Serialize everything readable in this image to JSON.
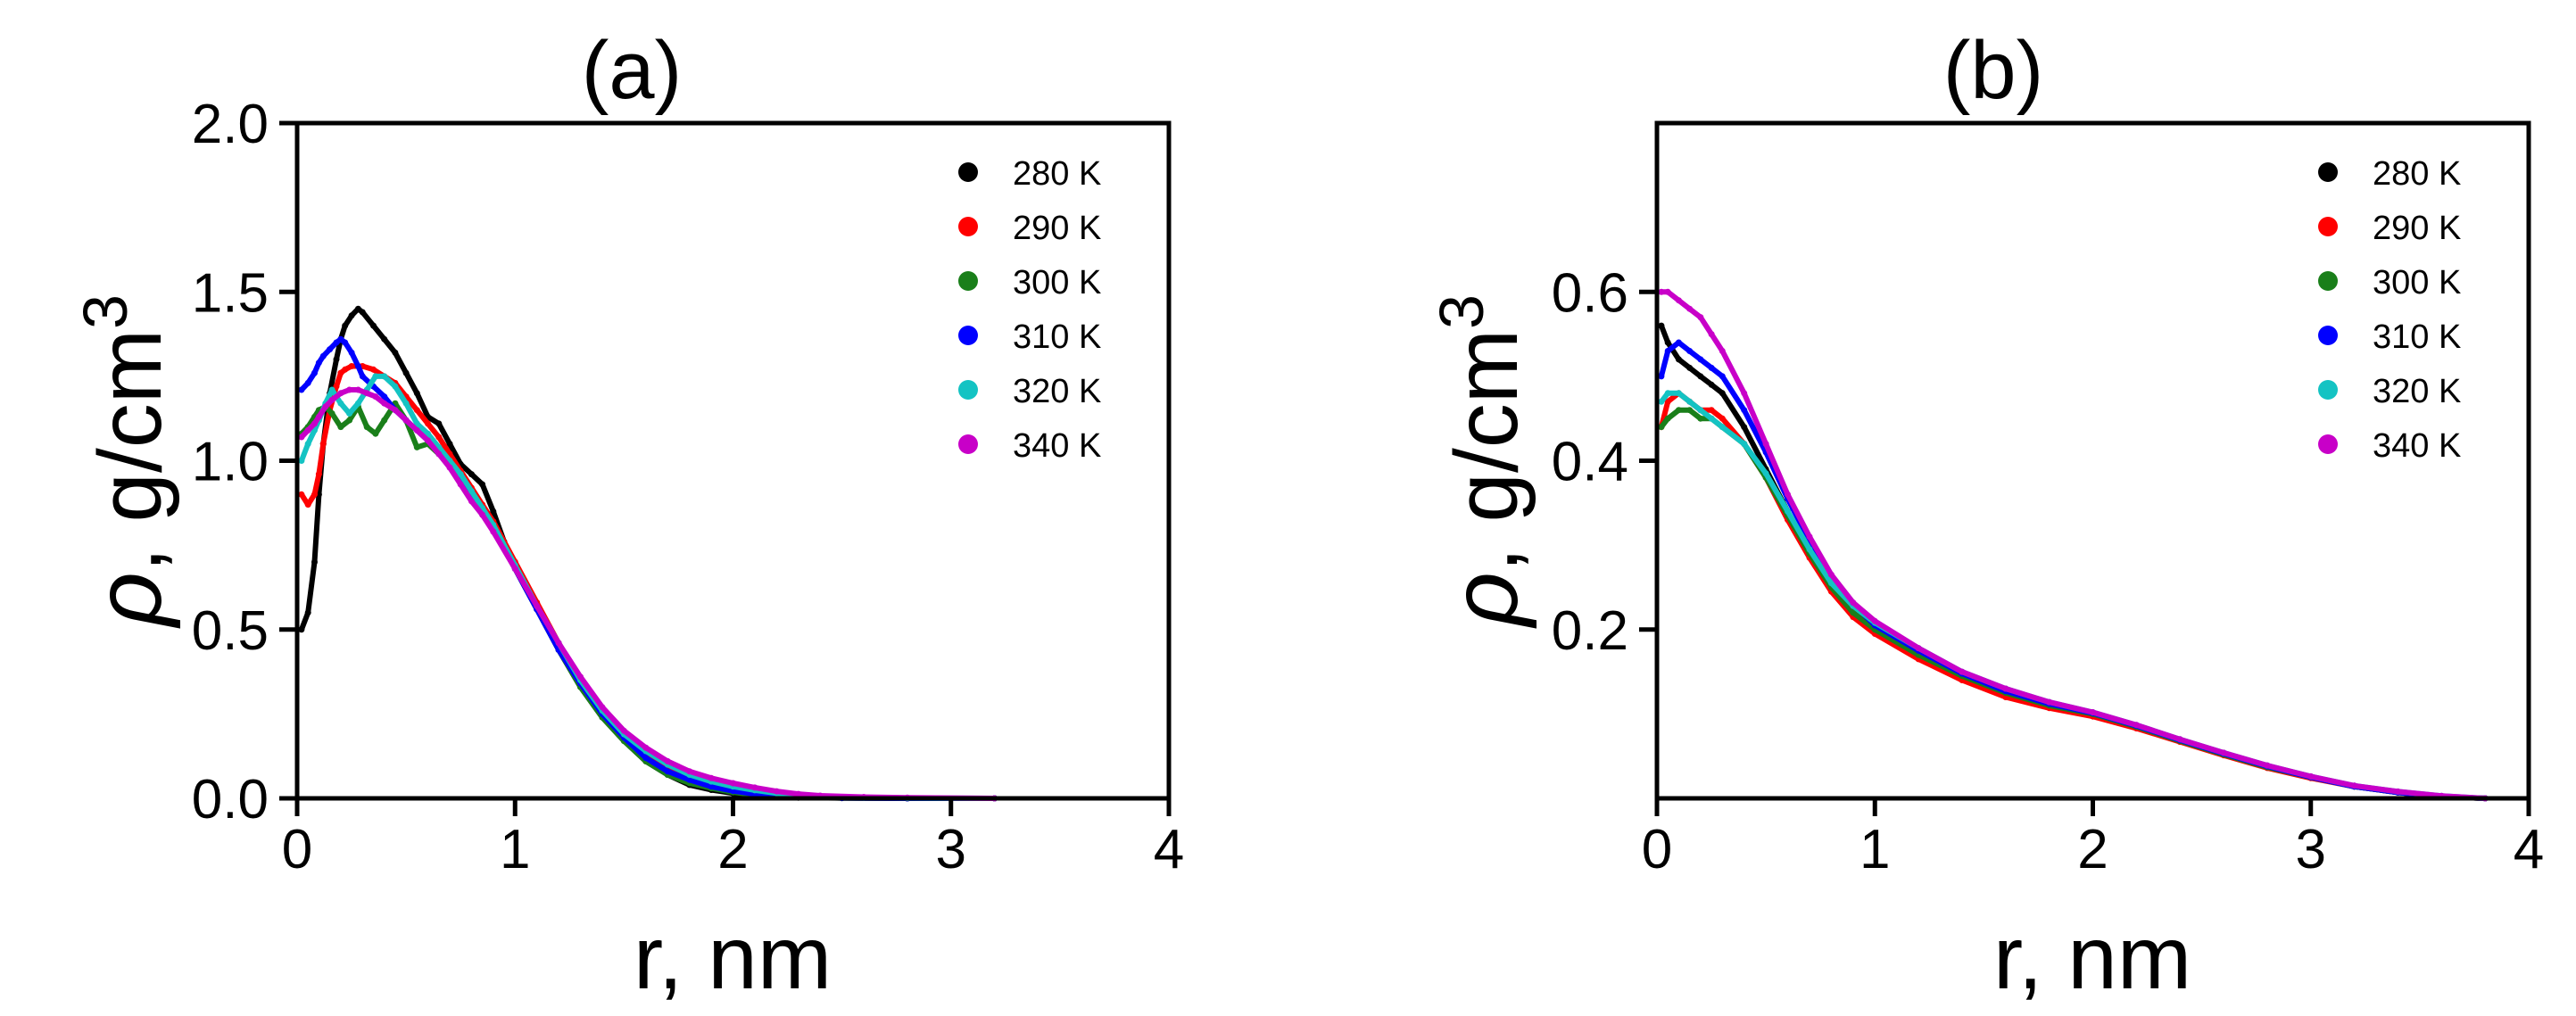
{
  "colors": {
    "280 K": "#000000",
    "290 K": "#ff0000",
    "300 K": "#1a7f1a",
    "310 K": "#0000ff",
    "320 K": "#14c3c3",
    "340 K": "#c800c8"
  },
  "chart_data": [
    {
      "type": "scatter",
      "title": "(a)",
      "xlabel": "r, nm",
      "ylabel": "ρ, g/cm3",
      "ylabel_symbol": "ρ",
      "ylabel_text": ", g/cm",
      "ylabel_superscript": "3",
      "xlim": [
        0,
        4
      ],
      "ylim": [
        0,
        2.0
      ],
      "xticks": [
        0,
        1,
        2,
        3,
        4
      ],
      "xtick_labels": [
        "0",
        "1",
        "2",
        "3",
        "4"
      ],
      "yticks": [
        0,
        0.5,
        1.0,
        1.5,
        2.0
      ],
      "ytick_labels": [
        "0.0",
        "0.5",
        "1.0",
        "1.5",
        "2.0"
      ],
      "legend_position": "top-right",
      "series": [
        {
          "name": "280 K",
          "x": [
            0.02,
            0.05,
            0.08,
            0.1,
            0.12,
            0.15,
            0.18,
            0.2,
            0.22,
            0.25,
            0.28,
            0.3,
            0.35,
            0.4,
            0.45,
            0.5,
            0.55,
            0.6,
            0.65,
            0.7,
            0.75,
            0.8,
            0.85,
            0.9,
            0.95,
            1.0,
            1.1,
            1.2,
            1.3,
            1.4,
            1.5,
            1.6,
            1.7,
            1.8,
            1.9,
            2.0,
            2.1,
            2.2,
            2.3,
            2.5,
            2.8,
            3.2
          ],
          "y": [
            0.5,
            0.55,
            0.7,
            0.9,
            1.05,
            1.2,
            1.3,
            1.36,
            1.4,
            1.43,
            1.45,
            1.44,
            1.4,
            1.36,
            1.32,
            1.26,
            1.2,
            1.13,
            1.11,
            1.05,
            0.99,
            0.96,
            0.93,
            0.85,
            0.76,
            0.68,
            0.56,
            0.44,
            0.33,
            0.24,
            0.17,
            0.11,
            0.07,
            0.04,
            0.025,
            0.015,
            0.008,
            0.004,
            0.002,
            0.001,
            0.0,
            0.0
          ]
        },
        {
          "name": "290 K",
          "x": [
            0.02,
            0.05,
            0.08,
            0.1,
            0.12,
            0.15,
            0.18,
            0.2,
            0.22,
            0.25,
            0.3,
            0.35,
            0.4,
            0.45,
            0.5,
            0.55,
            0.6,
            0.65,
            0.7,
            0.75,
            0.8,
            0.85,
            0.9,
            1.0,
            1.1,
            1.2,
            1.3,
            1.4,
            1.5,
            1.6,
            1.7,
            1.8,
            1.9,
            2.0,
            2.1,
            2.2,
            2.3,
            2.5,
            2.8,
            3.2
          ],
          "y": [
            0.9,
            0.87,
            0.9,
            0.96,
            1.05,
            1.15,
            1.22,
            1.26,
            1.27,
            1.28,
            1.28,
            1.27,
            1.25,
            1.23,
            1.19,
            1.15,
            1.11,
            1.07,
            1.02,
            0.97,
            0.92,
            0.87,
            0.82,
            0.7,
            0.58,
            0.46,
            0.35,
            0.26,
            0.19,
            0.13,
            0.09,
            0.06,
            0.04,
            0.027,
            0.017,
            0.01,
            0.006,
            0.002,
            0.0,
            0.0
          ]
        },
        {
          "name": "300 K",
          "x": [
            0.02,
            0.05,
            0.08,
            0.1,
            0.13,
            0.16,
            0.2,
            0.24,
            0.28,
            0.32,
            0.36,
            0.4,
            0.45,
            0.5,
            0.55,
            0.6,
            0.65,
            0.7,
            0.75,
            0.8,
            0.85,
            0.9,
            1.0,
            1.1,
            1.2,
            1.3,
            1.4,
            1.5,
            1.6,
            1.7,
            1.8,
            1.9,
            2.0,
            2.1,
            2.2,
            2.3,
            2.5,
            2.8,
            3.2
          ],
          "y": [
            1.08,
            1.1,
            1.13,
            1.15,
            1.16,
            1.14,
            1.1,
            1.12,
            1.16,
            1.1,
            1.08,
            1.12,
            1.17,
            1.12,
            1.04,
            1.05,
            1.02,
            0.99,
            0.95,
            0.9,
            0.85,
            0.8,
            0.68,
            0.56,
            0.44,
            0.33,
            0.24,
            0.17,
            0.11,
            0.07,
            0.045,
            0.03,
            0.018,
            0.01,
            0.006,
            0.003,
            0.001,
            0.0,
            0.0
          ]
        },
        {
          "name": "310 K",
          "x": [
            0.02,
            0.05,
            0.08,
            0.1,
            0.12,
            0.15,
            0.18,
            0.2,
            0.22,
            0.25,
            0.28,
            0.3,
            0.35,
            0.4,
            0.45,
            0.5,
            0.55,
            0.6,
            0.65,
            0.7,
            0.75,
            0.8,
            0.85,
            0.9,
            1.0,
            1.1,
            1.2,
            1.3,
            1.4,
            1.5,
            1.6,
            1.7,
            1.8,
            1.9,
            2.0,
            2.1,
            2.2,
            2.3,
            2.5,
            2.8,
            3.2
          ],
          "y": [
            1.21,
            1.23,
            1.26,
            1.29,
            1.31,
            1.33,
            1.35,
            1.36,
            1.35,
            1.32,
            1.28,
            1.25,
            1.22,
            1.19,
            1.15,
            1.12,
            1.09,
            1.06,
            1.03,
            0.99,
            0.95,
            0.9,
            0.85,
            0.8,
            0.68,
            0.56,
            0.44,
            0.34,
            0.25,
            0.18,
            0.12,
            0.08,
            0.055,
            0.035,
            0.022,
            0.013,
            0.008,
            0.004,
            0.001,
            0.0,
            0.0
          ]
        },
        {
          "name": "320 K",
          "x": [
            0.02,
            0.05,
            0.08,
            0.1,
            0.13,
            0.16,
            0.2,
            0.24,
            0.28,
            0.32,
            0.36,
            0.4,
            0.45,
            0.5,
            0.55,
            0.6,
            0.65,
            0.7,
            0.75,
            0.8,
            0.85,
            0.9,
            1.0,
            1.1,
            1.2,
            1.3,
            1.4,
            1.5,
            1.6,
            1.7,
            1.8,
            1.9,
            2.0,
            2.1,
            2.2,
            2.3,
            2.4,
            2.6,
            2.8,
            3.2
          ],
          "y": [
            1.0,
            1.05,
            1.09,
            1.12,
            1.17,
            1.21,
            1.17,
            1.14,
            1.17,
            1.21,
            1.25,
            1.25,
            1.22,
            1.17,
            1.11,
            1.08,
            1.04,
            1.0,
            0.96,
            0.91,
            0.86,
            0.81,
            0.69,
            0.57,
            0.46,
            0.35,
            0.26,
            0.19,
            0.14,
            0.1,
            0.07,
            0.05,
            0.035,
            0.024,
            0.015,
            0.009,
            0.005,
            0.002,
            0.001,
            0.0
          ]
        },
        {
          "name": "340 K",
          "x": [
            0.02,
            0.05,
            0.08,
            0.1,
            0.13,
            0.16,
            0.2,
            0.24,
            0.28,
            0.32,
            0.36,
            0.4,
            0.45,
            0.5,
            0.55,
            0.6,
            0.65,
            0.7,
            0.75,
            0.8,
            0.85,
            0.9,
            1.0,
            1.1,
            1.2,
            1.3,
            1.4,
            1.5,
            1.6,
            1.7,
            1.8,
            1.9,
            2.0,
            2.1,
            2.2,
            2.3,
            2.4,
            2.6,
            2.8,
            3.2
          ],
          "y": [
            1.07,
            1.09,
            1.11,
            1.13,
            1.16,
            1.18,
            1.2,
            1.21,
            1.21,
            1.2,
            1.19,
            1.17,
            1.15,
            1.12,
            1.09,
            1.06,
            1.02,
            0.98,
            0.93,
            0.88,
            0.84,
            0.79,
            0.68,
            0.57,
            0.46,
            0.36,
            0.27,
            0.2,
            0.15,
            0.11,
            0.08,
            0.06,
            0.045,
            0.032,
            0.021,
            0.013,
            0.008,
            0.004,
            0.002,
            0.0
          ]
        }
      ]
    },
    {
      "type": "scatter",
      "title": "(b)",
      "xlabel": "r, nm",
      "ylabel": "ρ, g/cm3",
      "ylabel_symbol": "ρ",
      "ylabel_text": ", g/cm",
      "ylabel_superscript": "3",
      "xlim": [
        0,
        4
      ],
      "ylim": [
        0,
        0.8
      ],
      "xticks": [
        0,
        1,
        2,
        3,
        4
      ],
      "xtick_labels": [
        "0",
        "1",
        "2",
        "3",
        "4"
      ],
      "yticks": [
        0.2,
        0.4,
        0.6
      ],
      "ytick_labels": [
        "0.2",
        "0.4",
        "0.6"
      ],
      "legend_position": "top-right",
      "series": [
        {
          "name": "280 K",
          "x": [
            0.02,
            0.05,
            0.1,
            0.15,
            0.2,
            0.25,
            0.3,
            0.4,
            0.5,
            0.6,
            0.7,
            0.8,
            0.9,
            1.0,
            1.2,
            1.4,
            1.6,
            1.8,
            2.0,
            2.2,
            2.4,
            2.6,
            2.8,
            3.0,
            3.2,
            3.4,
            3.6,
            3.8
          ],
          "y": [
            0.56,
            0.54,
            0.52,
            0.51,
            0.5,
            0.49,
            0.48,
            0.44,
            0.39,
            0.34,
            0.29,
            0.25,
            0.22,
            0.2,
            0.17,
            0.145,
            0.125,
            0.11,
            0.1,
            0.085,
            0.068,
            0.052,
            0.037,
            0.025,
            0.014,
            0.007,
            0.002,
            0.0
          ]
        },
        {
          "name": "290 K",
          "x": [
            0.02,
            0.05,
            0.1,
            0.15,
            0.2,
            0.25,
            0.3,
            0.4,
            0.5,
            0.6,
            0.7,
            0.8,
            0.9,
            1.0,
            1.2,
            1.4,
            1.6,
            1.8,
            2.0,
            2.2,
            2.4,
            2.6,
            2.8,
            3.0,
            3.2,
            3.4,
            3.6,
            3.8
          ],
          "y": [
            0.44,
            0.47,
            0.48,
            0.47,
            0.46,
            0.46,
            0.45,
            0.42,
            0.38,
            0.33,
            0.285,
            0.245,
            0.215,
            0.195,
            0.165,
            0.14,
            0.12,
            0.107,
            0.097,
            0.083,
            0.067,
            0.051,
            0.036,
            0.024,
            0.014,
            0.007,
            0.002,
            0.0
          ]
        },
        {
          "name": "300 K",
          "x": [
            0.02,
            0.05,
            0.1,
            0.15,
            0.2,
            0.25,
            0.3,
            0.4,
            0.5,
            0.6,
            0.7,
            0.8,
            0.9,
            1.0,
            1.2,
            1.4,
            1.6,
            1.8,
            2.0,
            2.2,
            2.4,
            2.6,
            2.8,
            3.0,
            3.2,
            3.4,
            3.6,
            3.8
          ],
          "y": [
            0.44,
            0.45,
            0.46,
            0.46,
            0.45,
            0.45,
            0.44,
            0.42,
            0.38,
            0.335,
            0.29,
            0.25,
            0.22,
            0.2,
            0.17,
            0.145,
            0.125,
            0.11,
            0.1,
            0.085,
            0.068,
            0.052,
            0.037,
            0.025,
            0.014,
            0.007,
            0.002,
            0.0
          ]
        },
        {
          "name": "310 K",
          "x": [
            0.02,
            0.05,
            0.1,
            0.15,
            0.2,
            0.25,
            0.3,
            0.4,
            0.5,
            0.6,
            0.7,
            0.8,
            0.9,
            1.0,
            1.2,
            1.4,
            1.6,
            1.8,
            2.0,
            2.2,
            2.4,
            2.6,
            2.8,
            3.0,
            3.2,
            3.4,
            3.6,
            3.8
          ],
          "y": [
            0.5,
            0.53,
            0.54,
            0.53,
            0.52,
            0.51,
            0.5,
            0.46,
            0.41,
            0.355,
            0.305,
            0.26,
            0.23,
            0.205,
            0.175,
            0.148,
            0.127,
            0.112,
            0.101,
            0.086,
            0.069,
            0.053,
            0.038,
            0.025,
            0.014,
            0.007,
            0.002,
            0.0
          ]
        },
        {
          "name": "320 K",
          "x": [
            0.02,
            0.05,
            0.1,
            0.15,
            0.2,
            0.25,
            0.3,
            0.4,
            0.5,
            0.6,
            0.7,
            0.8,
            0.9,
            1.0,
            1.2,
            1.4,
            1.6,
            1.8,
            2.0,
            2.2,
            2.4,
            2.6,
            2.8,
            3.0,
            3.2,
            3.4,
            3.6,
            3.8
          ],
          "y": [
            0.47,
            0.48,
            0.48,
            0.47,
            0.46,
            0.45,
            0.44,
            0.42,
            0.385,
            0.34,
            0.295,
            0.255,
            0.228,
            0.208,
            0.178,
            0.15,
            0.13,
            0.114,
            0.102,
            0.087,
            0.07,
            0.054,
            0.039,
            0.026,
            0.015,
            0.008,
            0.003,
            0.0
          ]
        },
        {
          "name": "340 K",
          "x": [
            0.02,
            0.05,
            0.1,
            0.15,
            0.2,
            0.25,
            0.3,
            0.4,
            0.5,
            0.6,
            0.7,
            0.8,
            0.9,
            1.0,
            1.2,
            1.4,
            1.6,
            1.8,
            2.0,
            2.2,
            2.4,
            2.6,
            2.8,
            3.0,
            3.2,
            3.4,
            3.6,
            3.8
          ],
          "y": [
            0.6,
            0.6,
            0.59,
            0.58,
            0.57,
            0.55,
            0.53,
            0.48,
            0.42,
            0.36,
            0.31,
            0.265,
            0.232,
            0.21,
            0.178,
            0.15,
            0.13,
            0.114,
            0.102,
            0.087,
            0.07,
            0.054,
            0.039,
            0.026,
            0.015,
            0.008,
            0.003,
            0.0
          ]
        }
      ]
    }
  ]
}
